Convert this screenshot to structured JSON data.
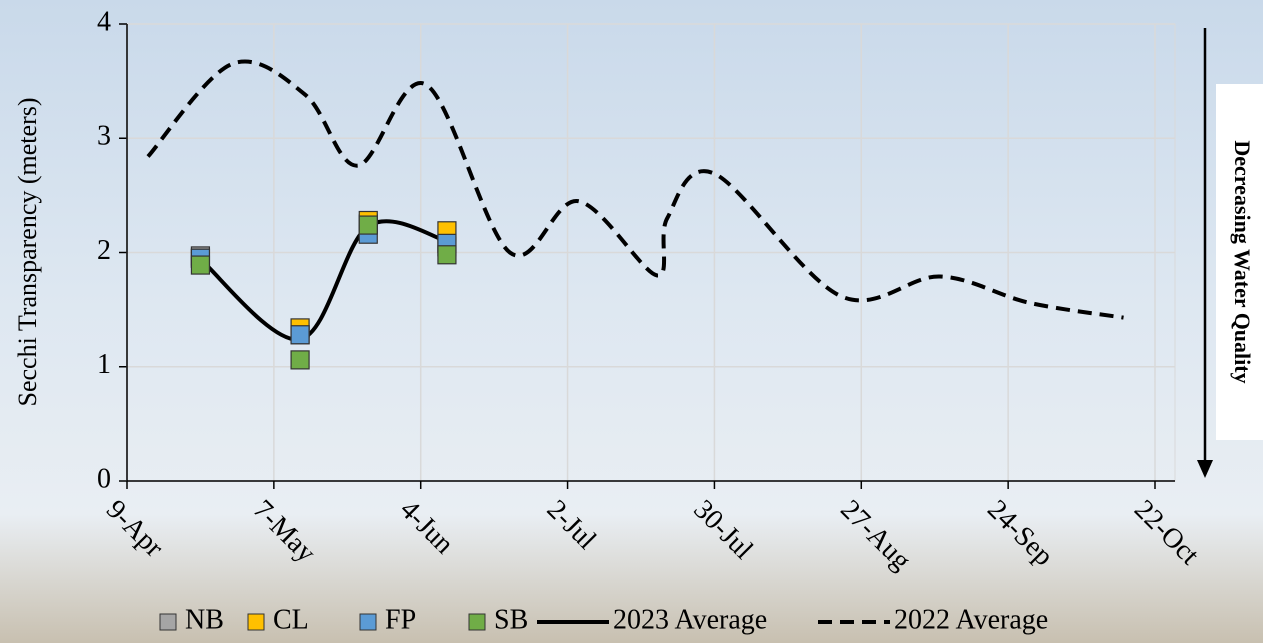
{
  "chart_data": {
    "type": "line",
    "y_label": "Secchi Transparency (meters)",
    "annotation": "Decreasing Water Quality",
    "xlim": [
      "9-Apr",
      "22-Oct"
    ],
    "xticks": [
      "9-Apr",
      "7-May",
      "4-Jun",
      "2-Jul",
      "30-Jul",
      "27-Aug",
      "24-Sep",
      "22-Oct"
    ],
    "ylim": [
      0,
      4
    ],
    "yticks": [
      0,
      1,
      2,
      3,
      4
    ],
    "grid": true,
    "legend": "bottom",
    "series": [
      {
        "name": "NB",
        "color": "#a5a5a5",
        "marker": "square",
        "x": [
          "23-Apr",
          "12-May",
          "25-May",
          "9-Jun"
        ],
        "values": [
          1.97,
          1.28,
          2.25,
          2.05
        ]
      },
      {
        "name": "CL",
        "color": "#ffc000",
        "marker": "square",
        "x": [
          "23-Apr",
          "12-May",
          "25-May",
          "9-Jun"
        ],
        "values": [
          1.95,
          1.34,
          2.28,
          2.19
        ]
      },
      {
        "name": "FP",
        "color": "#5b9bd5",
        "marker": "square",
        "x": [
          "23-Apr",
          "12-May",
          "25-May",
          "9-Jun"
        ],
        "values": [
          1.95,
          1.28,
          2.16,
          2.08
        ]
      },
      {
        "name": "SB",
        "color": "#70ad47",
        "marker": "square",
        "x": [
          "23-Apr",
          "12-May",
          "25-May",
          "9-Jun"
        ],
        "values": [
          1.89,
          1.06,
          2.24,
          1.98
        ]
      },
      {
        "name": "2023 Average",
        "color": "#000000",
        "dash": false,
        "x": [
          "23-Apr",
          "12-May",
          "25-May",
          "9-Jun"
        ],
        "values": [
          1.94,
          1.24,
          2.23,
          2.1
        ]
      },
      {
        "name": "2022 Average",
        "color": "#000000",
        "dash": true,
        "x": [
          "13-Apr",
          "29-Apr",
          "13-May",
          "23-May",
          "5-Jun",
          "21-Jun",
          "4-Jul",
          "19-Jul",
          "21-Jul",
          "30-Jul",
          "23-Aug",
          "11-Sep",
          "28-Sep",
          "16-Oct"
        ],
        "values": [
          2.84,
          3.65,
          3.38,
          2.76,
          3.47,
          2.0,
          2.45,
          1.8,
          2.3,
          2.69,
          1.62,
          1.79,
          1.56,
          1.43
        ]
      }
    ]
  }
}
